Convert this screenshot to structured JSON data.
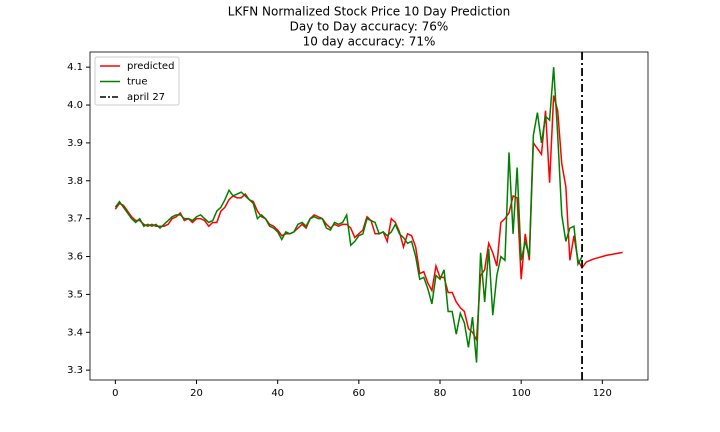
{
  "chart_data": {
    "type": "line",
    "title": [
      "LKFN Normalized Stock Price 10 Day Prediction",
      "Day to Day accuracy: 76%",
      "10 day accuracy: 71%"
    ],
    "x": [
      0,
      1,
      2,
      3,
      4,
      5,
      6,
      7,
      8,
      9,
      10,
      11,
      12,
      13,
      14,
      15,
      16,
      17,
      18,
      19,
      20,
      21,
      22,
      23,
      24,
      25,
      26,
      27,
      28,
      29,
      30,
      31,
      32,
      33,
      34,
      35,
      36,
      37,
      38,
      39,
      40,
      41,
      42,
      43,
      44,
      45,
      46,
      47,
      48,
      49,
      50,
      51,
      52,
      53,
      54,
      55,
      56,
      57,
      58,
      59,
      60,
      61,
      62,
      63,
      64,
      65,
      66,
      67,
      68,
      69,
      70,
      71,
      72,
      73,
      74,
      75,
      76,
      77,
      78,
      79,
      80,
      81,
      82,
      83,
      84,
      85,
      86,
      87,
      88,
      89,
      90,
      91,
      92,
      93,
      94,
      95,
      96,
      97,
      98,
      99,
      100,
      101,
      102,
      103,
      104,
      105,
      106,
      107,
      108,
      109,
      110,
      111,
      112,
      113,
      114,
      115,
      116,
      117,
      118,
      119,
      120,
      121,
      122,
      123,
      124,
      125
    ],
    "series": [
      {
        "name": "predicted",
        "color": "#ff0000",
        "values": [
          3.725,
          3.74,
          3.735,
          3.72,
          3.705,
          3.695,
          3.695,
          3.685,
          3.68,
          3.685,
          3.68,
          3.68,
          3.68,
          3.685,
          3.7,
          3.705,
          3.715,
          3.695,
          3.7,
          3.69,
          3.7,
          3.7,
          3.695,
          3.68,
          3.69,
          3.69,
          3.72,
          3.73,
          3.75,
          3.76,
          3.755,
          3.755,
          3.765,
          3.75,
          3.745,
          3.72,
          3.705,
          3.7,
          3.685,
          3.68,
          3.67,
          3.655,
          3.66,
          3.66,
          3.665,
          3.675,
          3.685,
          3.675,
          3.7,
          3.71,
          3.705,
          3.7,
          3.685,
          3.675,
          3.685,
          3.68,
          3.685,
          3.685,
          3.675,
          3.65,
          3.66,
          3.67,
          3.705,
          3.695,
          3.66,
          3.66,
          3.665,
          3.64,
          3.7,
          3.69,
          3.665,
          3.625,
          3.66,
          3.655,
          3.625,
          3.555,
          3.56,
          3.53,
          3.51,
          3.575,
          3.545,
          3.545,
          3.505,
          3.505,
          3.48,
          3.465,
          3.455,
          3.41,
          3.4,
          3.38,
          3.55,
          3.565,
          3.635,
          3.61,
          3.575,
          3.69,
          3.7,
          3.715,
          3.76,
          3.755,
          3.54,
          3.66,
          3.59,
          3.9,
          3.885,
          3.87,
          3.985,
          3.795,
          4.025,
          3.985,
          3.845,
          3.785,
          3.59,
          3.655,
          3.59,
          3.57,
          3.585,
          3.59,
          3.594,
          3.597,
          3.6,
          3.603,
          3.605,
          3.607,
          3.609,
          3.611
        ]
      },
      {
        "name": "true",
        "color": "#008000",
        "values": [
          3.73,
          3.745,
          3.73,
          3.715,
          3.7,
          3.69,
          3.7,
          3.68,
          3.685,
          3.68,
          3.685,
          3.675,
          3.685,
          3.695,
          3.705,
          3.71,
          3.71,
          3.7,
          3.7,
          3.695,
          3.705,
          3.71,
          3.7,
          3.69,
          3.695,
          3.72,
          3.73,
          3.75,
          3.775,
          3.76,
          3.765,
          3.77,
          3.76,
          3.75,
          3.74,
          3.7,
          3.71,
          3.7,
          3.68,
          3.675,
          3.665,
          3.645,
          3.665,
          3.66,
          3.665,
          3.685,
          3.69,
          3.68,
          3.7,
          3.705,
          3.7,
          3.7,
          3.675,
          3.67,
          3.69,
          3.685,
          3.69,
          3.71,
          3.63,
          3.64,
          3.655,
          3.66,
          3.7,
          3.695,
          3.69,
          3.66,
          3.665,
          3.655,
          3.665,
          3.685,
          3.66,
          3.65,
          3.635,
          3.64,
          3.6,
          3.54,
          3.545,
          3.515,
          3.475,
          3.55,
          3.54,
          3.565,
          3.455,
          3.455,
          3.395,
          3.45,
          3.425,
          3.36,
          3.44,
          3.32,
          3.61,
          3.48,
          3.62,
          3.445,
          3.55,
          3.6,
          3.59,
          3.875,
          3.66,
          3.835,
          3.59,
          3.64,
          3.6,
          3.92,
          3.98,
          3.9,
          3.97,
          3.96,
          4.1,
          3.92,
          3.71,
          3.64,
          3.675,
          3.68,
          3.58,
          3.6,
          null,
          null,
          null,
          null,
          null,
          null,
          null,
          null,
          null,
          null
        ]
      }
    ],
    "vline": {
      "x": 115,
      "name": "april 27",
      "color": "#000000"
    },
    "legend": "upper left",
    "xlim": [
      -6.25,
      131.25
    ],
    "ylim": [
      3.274,
      4.14
    ],
    "xticks": [
      0,
      20,
      40,
      60,
      80,
      100,
      120
    ],
    "yticks": [
      3.3,
      3.4,
      3.5,
      3.6,
      3.7,
      3.8,
      3.9,
      {
        "value": 4,
        "label": "4.0"
      },
      4.1
    ]
  }
}
